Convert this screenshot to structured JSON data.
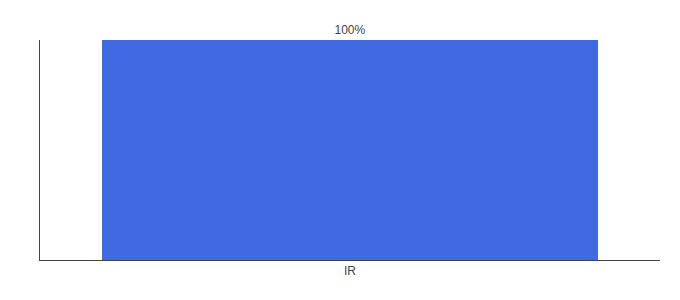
{
  "chart_data": {
    "type": "bar",
    "categories": [
      "IR"
    ],
    "values": [
      100
    ],
    "value_labels": [
      "100%"
    ],
    "data_labels": true,
    "color": "#4169e1",
    "ylim": [
      0,
      100
    ],
    "yticks": [],
    "tick_labels": "x",
    "grid": false
  }
}
